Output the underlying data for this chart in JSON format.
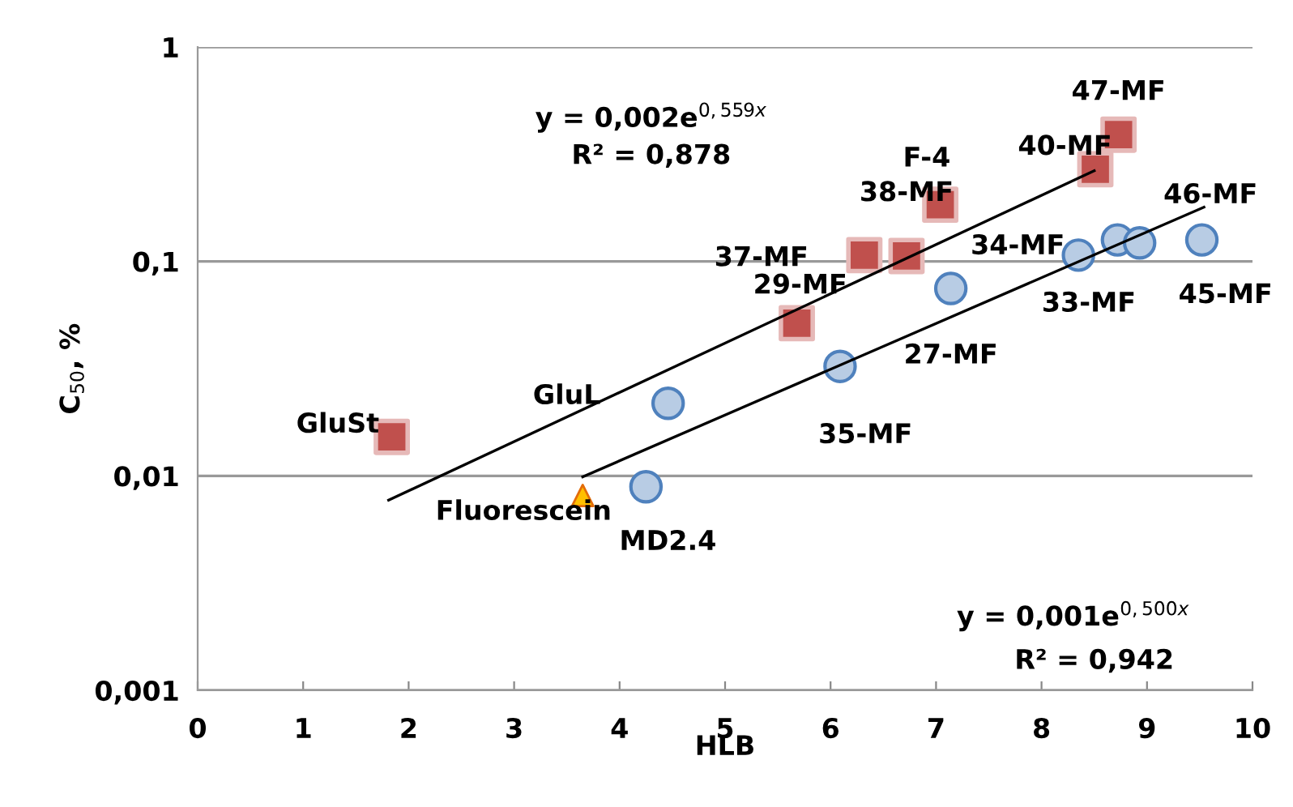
{
  "chart_data": {
    "type": "scatter",
    "xlabel": "HLB",
    "ylabel": "C$_{50}$, %",
    "xlim": [
      0,
      10
    ],
    "xticks": [
      0,
      1,
      2,
      3,
      4,
      5,
      6,
      7,
      8,
      9,
      10
    ],
    "ylim": [
      0.001,
      1
    ],
    "yticks": [
      {
        "value": 0.001,
        "label": "0,001"
      },
      {
        "value": 0.01,
        "label": "0,01"
      },
      {
        "value": 0.1,
        "label": "0,1"
      },
      {
        "value": 1,
        "label": "1"
      }
    ],
    "log": "y",
    "grid": "y",
    "legend": false,
    "series": [
      {
        "type": "line",
        "color": "#000000",
        "x": [
          1.81,
          8.5
        ],
        "values": [
          0.0077,
          0.265
        ],
        "marker": "none",
        "line_style": "solid"
      },
      {
        "type": "line",
        "color": "#000000",
        "x": [
          3.65,
          9.54
        ],
        "values": [
          0.0099,
          0.179
        ],
        "marker": "none",
        "line_style": "solid"
      },
      {
        "color": "#c0504d",
        "marker": "square",
        "x": [
          1.84,
          5.68,
          6.32,
          6.72,
          7.04,
          8.51,
          8.73
        ],
        "values": [
          0.0152,
          0.0515,
          0.107,
          0.106,
          0.184,
          0.269,
          0.39
        ]
      },
      {
        "color": "#4f81bd",
        "marker": "circle",
        "x": [
          4.46,
          4.25,
          6.09,
          7.14,
          8.35,
          8.72,
          8.93,
          9.52
        ],
        "values": [
          0.0218,
          0.0089,
          0.0324,
          0.0748,
          0.107,
          0.126,
          0.122,
          0.126
        ]
      },
      {
        "color": "#ffc000",
        "marker": "triangle",
        "x": [
          3.65
        ],
        "values": [
          0.0081
        ]
      }
    ],
    "annotations": [
      {
        "text": "GluSt",
        "x": 1.84,
        "y": 0.0152
      },
      {
        "text": "29-MF",
        "x": 5.68,
        "y": 0.0515
      },
      {
        "text": "37-MF",
        "x": 6.32,
        "y": 0.107
      },
      {
        "text": "38-MF",
        "x": 6.72,
        "y": 0.106
      },
      {
        "text": "F-4",
        "x": 7.04,
        "y": 0.184
      },
      {
        "text": "40-MF",
        "x": 8.51,
        "y": 0.269
      },
      {
        "text": "47-MF",
        "x": 8.73,
        "y": 0.39
      },
      {
        "text": "GluL",
        "x": 4.46,
        "y": 0.0218
      },
      {
        "text": "Fluorescein",
        "x": 3.65,
        "y": 0.0081
      },
      {
        "text": "MD2.4",
        "x": 4.25,
        "y": 0.0089
      },
      {
        "text": "35-MF",
        "x": 6.09,
        "y": 0.0324
      },
      {
        "text": "27-MF",
        "x": 7.14,
        "y": 0.0748
      },
      {
        "text": "34-MF",
        "x": 8.35,
        "y": 0.107
      },
      {
        "text": "33-MF",
        "x": 8.72,
        "y": 0.126
      },
      {
        "text": "46-MF",
        "x": 8.93,
        "y": 0.122
      },
      {
        "text": "45-MF",
        "x": 9.52,
        "y": 0.126
      },
      "y = 0,002e$^{0,559x}$",
      "R² = 0,878",
      "y = 0,001e$^{0,500x}$",
      "R² = 0,942"
    ]
  }
}
